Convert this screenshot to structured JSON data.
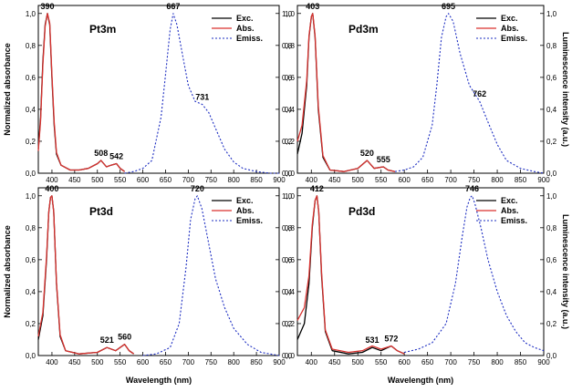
{
  "chart_data": {
    "type": "line",
    "xlabel": "Wavelength (nm)",
    "ylabel_left": "Normalized absorbance",
    "ylabel_right": "Luminescence intensity (a.u.)",
    "xlim": [
      370,
      900
    ],
    "ylim": [
      0,
      1.05
    ],
    "xticks": [
      400,
      450,
      500,
      550,
      600,
      650,
      700,
      750,
      800,
      850,
      900
    ],
    "yticks": [
      "0,0",
      "0,2",
      "0,4",
      "0,6",
      "0,8",
      "1,0"
    ],
    "legend_position": "top-right",
    "series_names": [
      "Exc.",
      "Abs.",
      "Emiss."
    ],
    "series_colors": {
      "exc": "#000000",
      "abs": "#d9322f",
      "emiss": "#1b2cc1"
    },
    "panels": [
      {
        "title": "Pt3m",
        "peak_labels": [
          {
            "x": 390,
            "y": 1.0,
            "label": "390"
          },
          {
            "x": 508,
            "y": 0.08,
            "label": "508"
          },
          {
            "x": 542,
            "y": 0.06,
            "label": "542"
          },
          {
            "x": 667,
            "y": 1.0,
            "label": "667"
          },
          {
            "x": 731,
            "y": 0.43,
            "label": "731"
          }
        ],
        "series": [
          {
            "name": "Exc.",
            "x": [
              370,
              375,
              380,
              385,
              390,
              395,
              400,
              405,
              410,
              420,
              440,
              460,
              480,
              500,
              508,
              520,
              530,
              542,
              550,
              560
            ],
            "y": [
              0.15,
              0.35,
              0.7,
              0.93,
              1.0,
              0.93,
              0.6,
              0.3,
              0.12,
              0.05,
              0.02,
              0.02,
              0.03,
              0.06,
              0.08,
              0.04,
              0.05,
              0.06,
              0.03,
              0.01
            ]
          },
          {
            "name": "Abs.",
            "x": [
              370,
              375,
              380,
              385,
              390,
              395,
              400,
              405,
              410,
              420,
              440,
              460,
              480,
              500,
              508,
              520,
              530,
              542,
              550,
              560
            ],
            "y": [
              0.14,
              0.33,
              0.68,
              0.92,
              1.0,
              0.94,
              0.62,
              0.32,
              0.13,
              0.05,
              0.02,
              0.02,
              0.03,
              0.06,
              0.08,
              0.04,
              0.05,
              0.06,
              0.03,
              0.01
            ]
          },
          {
            "name": "Emiss.",
            "x": [
              560,
              580,
              600,
              620,
              640,
              650,
              660,
              667,
              675,
              690,
              700,
              715,
              731,
              745,
              760,
              780,
              800,
              820,
              850,
              880,
              900
            ],
            "y": [
              0.0,
              0.01,
              0.03,
              0.08,
              0.35,
              0.62,
              0.9,
              1.0,
              0.93,
              0.7,
              0.55,
              0.45,
              0.43,
              0.38,
              0.28,
              0.15,
              0.07,
              0.03,
              0.01,
              0.0,
              0.0
            ]
          }
        ]
      },
      {
        "title": "Pd3m",
        "peak_labels": [
          {
            "x": 403,
            "y": 1.0,
            "label": "403"
          },
          {
            "x": 520,
            "y": 0.08,
            "label": "520"
          },
          {
            "x": 555,
            "y": 0.04,
            "label": "555"
          },
          {
            "x": 695,
            "y": 1.0,
            "label": "695"
          },
          {
            "x": 762,
            "y": 0.45,
            "label": "762"
          }
        ],
        "series": [
          {
            "name": "Exc.",
            "x": [
              370,
              380,
              390,
              395,
              400,
              403,
              408,
              415,
              425,
              440,
              470,
              500,
              520,
              535,
              555,
              565,
              580
            ],
            "y": [
              0.12,
              0.25,
              0.55,
              0.85,
              0.98,
              1.0,
              0.85,
              0.4,
              0.1,
              0.02,
              0.01,
              0.03,
              0.08,
              0.03,
              0.04,
              0.02,
              0.01
            ]
          },
          {
            "name": "Abs.",
            "x": [
              370,
              380,
              390,
              395,
              400,
              403,
              408,
              415,
              425,
              440,
              470,
              500,
              520,
              535,
              555,
              565,
              580
            ],
            "y": [
              0.2,
              0.3,
              0.58,
              0.86,
              0.98,
              1.0,
              0.86,
              0.42,
              0.11,
              0.02,
              0.01,
              0.03,
              0.08,
              0.03,
              0.04,
              0.02,
              0.01
            ]
          },
          {
            "name": "Emiss.",
            "x": [
              580,
              600,
              620,
              640,
              660,
              670,
              680,
              690,
              695,
              705,
              720,
              740,
              762,
              780,
              800,
              820,
              850,
              880,
              900
            ],
            "y": [
              0.01,
              0.02,
              0.04,
              0.1,
              0.3,
              0.55,
              0.85,
              0.98,
              1.0,
              0.95,
              0.75,
              0.55,
              0.45,
              0.32,
              0.18,
              0.08,
              0.03,
              0.01,
              0.0
            ]
          }
        ]
      },
      {
        "title": "Pt3d",
        "peak_labels": [
          {
            "x": 400,
            "y": 1.0,
            "label": "400"
          },
          {
            "x": 521,
            "y": 0.05,
            "label": "521"
          },
          {
            "x": 560,
            "y": 0.07,
            "label": "560"
          },
          {
            "x": 720,
            "y": 1.0,
            "label": "720"
          }
        ],
        "series": [
          {
            "name": "Exc.",
            "x": [
              370,
              380,
              388,
              393,
              397,
              400,
              404,
              410,
              418,
              430,
              460,
              500,
              521,
              540,
              560,
              570,
              580
            ],
            "y": [
              0.1,
              0.25,
              0.6,
              0.9,
              0.99,
              1.0,
              0.9,
              0.45,
              0.12,
              0.03,
              0.01,
              0.02,
              0.05,
              0.03,
              0.07,
              0.03,
              0.01
            ]
          },
          {
            "name": "Abs.",
            "x": [
              370,
              380,
              388,
              393,
              397,
              400,
              404,
              410,
              418,
              430,
              460,
              500,
              521,
              540,
              560,
              570,
              580
            ],
            "y": [
              0.12,
              0.27,
              0.62,
              0.9,
              0.99,
              1.0,
              0.9,
              0.46,
              0.13,
              0.03,
              0.01,
              0.02,
              0.05,
              0.03,
              0.07,
              0.03,
              0.01
            ]
          },
          {
            "name": "Emiss.",
            "x": [
              600,
              630,
              660,
              680,
              695,
              705,
              715,
              720,
              730,
              745,
              760,
              780,
              800,
              830,
              860,
              900
            ],
            "y": [
              0.0,
              0.01,
              0.05,
              0.2,
              0.55,
              0.85,
              0.98,
              1.0,
              0.92,
              0.7,
              0.48,
              0.3,
              0.17,
              0.07,
              0.02,
              0.0
            ]
          }
        ]
      },
      {
        "title": "Pd3d",
        "peak_labels": [
          {
            "x": 412,
            "y": 1.0,
            "label": "412"
          },
          {
            "x": 531,
            "y": 0.05,
            "label": "531"
          },
          {
            "x": 572,
            "y": 0.06,
            "label": "572"
          },
          {
            "x": 746,
            "y": 1.0,
            "label": "746"
          }
        ],
        "series": [
          {
            "name": "Exc.",
            "x": [
              370,
              385,
              395,
              402,
              408,
              412,
              416,
              422,
              430,
              445,
              480,
              510,
              531,
              550,
              572,
              585,
              600
            ],
            "y": [
              0.1,
              0.2,
              0.45,
              0.8,
              0.97,
              1.0,
              0.9,
              0.5,
              0.15,
              0.03,
              0.01,
              0.02,
              0.05,
              0.03,
              0.06,
              0.03,
              0.01
            ]
          },
          {
            "name": "Abs.",
            "x": [
              370,
              385,
              395,
              402,
              408,
              412,
              416,
              422,
              430,
              445,
              480,
              510,
              531,
              550,
              572,
              585,
              600
            ],
            "y": [
              0.22,
              0.3,
              0.5,
              0.82,
              0.97,
              1.0,
              0.9,
              0.52,
              0.16,
              0.04,
              0.02,
              0.03,
              0.06,
              0.04,
              0.06,
              0.03,
              0.01
            ]
          },
          {
            "name": "Emiss.",
            "x": [
              600,
              630,
              660,
              690,
              710,
              725,
              735,
              742,
              746,
              752,
              765,
              780,
              800,
              820,
              840,
              860,
              880,
              900
            ],
            "y": [
              0.02,
              0.04,
              0.08,
              0.2,
              0.45,
              0.75,
              0.93,
              0.99,
              1.0,
              0.95,
              0.8,
              0.6,
              0.4,
              0.25,
              0.15,
              0.08,
              0.05,
              0.03
            ]
          }
        ]
      }
    ]
  }
}
